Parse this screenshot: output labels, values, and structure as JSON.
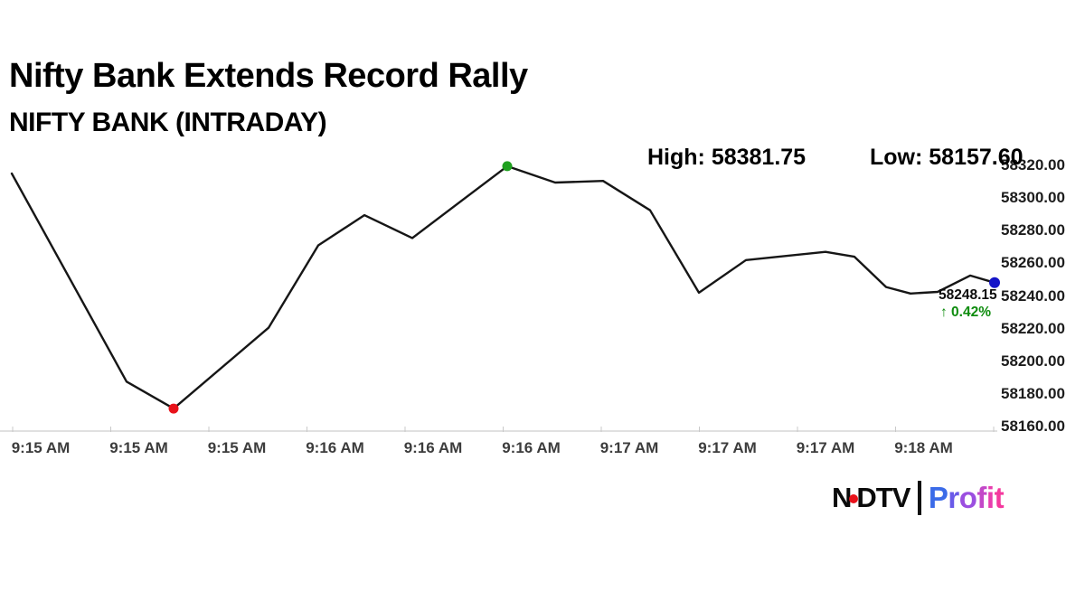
{
  "header": {
    "title": "Nifty Bank Extends Record Rally",
    "subtitle": "NIFTY BANK (INTRADAY)"
  },
  "stats": {
    "high_label": "High: 58381.75",
    "low_label": "Low: 58157.60"
  },
  "last_point": {
    "price": "58248.15",
    "change": "↑ 0.42%",
    "change_color": "#0E8C0E"
  },
  "chart_data": {
    "type": "line",
    "title": "NIFTY BANK (INTRADAY)",
    "high": 58381.75,
    "low": 58157.6,
    "last": 58248.15,
    "change_pct": 0.42,
    "line_color": "#161616",
    "axis_color": "#d6d6d6",
    "grid": false,
    "legend": false,
    "x_axis": {
      "labels": [
        "9:15 AM",
        "9:15 AM",
        "9:15 AM",
        "9:16 AM",
        "9:16 AM",
        "9:16 AM",
        "9:17 AM",
        "9:17 AM",
        "9:17 AM",
        "9:18 AM"
      ]
    },
    "y_axis": {
      "labels": [
        "58320.00",
        "58300.00",
        "58280.00",
        "58260.00",
        "58240.00",
        "58220.00",
        "58200.00",
        "58180.00",
        "58160.00"
      ],
      "top_value": 58320,
      "bottom_value": 58160
    },
    "series": [
      {
        "name": "NIFTY BANK",
        "points": [
          [
            13,
            58315.0
          ],
          [
            140,
            58187.5
          ],
          [
            192,
            58171.0
          ],
          [
            297,
            58220.5
          ],
          [
            352,
            58271.0
          ],
          [
            403,
            58289.5
          ],
          [
            456,
            58275.5
          ],
          [
            561,
            58319.5
          ],
          [
            614,
            58309.5
          ],
          [
            667,
            58310.5
          ],
          [
            719,
            58292.5
          ],
          [
            773,
            58242.0
          ],
          [
            825,
            58262.0
          ],
          [
            913,
            58267.0
          ],
          [
            945,
            58264.0
          ],
          [
            980,
            58245.5
          ],
          [
            1007,
            58241.5
          ],
          [
            1037,
            58242.5
          ],
          [
            1073,
            58252.5
          ],
          [
            1100,
            58248.15
          ]
        ]
      }
    ],
    "markers": [
      {
        "index": 2,
        "color": "#E8121A",
        "name": "low-point-dot",
        "radius": 5.5
      },
      {
        "index": 7,
        "color": "#1FA01F",
        "name": "high-point-dot",
        "radius": 5.5
      },
      {
        "index": 19,
        "color": "#1515C8",
        "name": "latest-point-dot",
        "radius": 6
      }
    ]
  },
  "logo": {
    "ndtv_prefix": "N",
    "ndtv_suffix": "DTV",
    "dot_color": "#E8121A",
    "profit_letters": [
      {
        "ch": "P",
        "color": "#3B6BE8"
      },
      {
        "ch": "r",
        "color": "#6A5AE8"
      },
      {
        "ch": "o",
        "color": "#9B4FE0"
      },
      {
        "ch": "f",
        "color": "#C348C8"
      },
      {
        "ch": "i",
        "color": "#E83DAE"
      },
      {
        "ch": "t",
        "color": "#F4399E"
      }
    ]
  }
}
